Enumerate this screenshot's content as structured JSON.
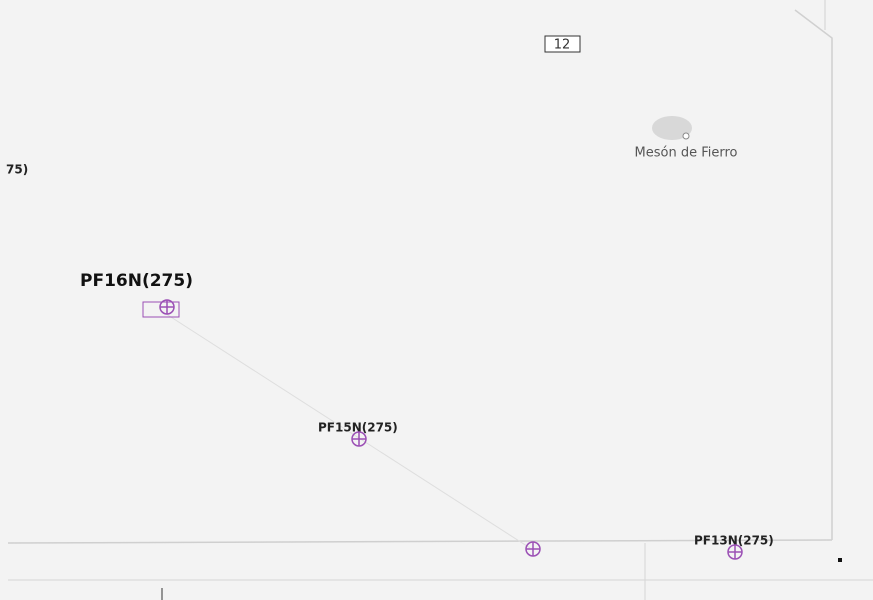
{
  "road_label": "12",
  "places": [
    {
      "label": "Mesón de Fierro"
    }
  ],
  "points": [
    {
      "label": "PF16N(275)"
    },
    {
      "label": "PF15N(275)"
    },
    {
      "label": "PF13N(275)"
    }
  ],
  "edge_label": "75)"
}
